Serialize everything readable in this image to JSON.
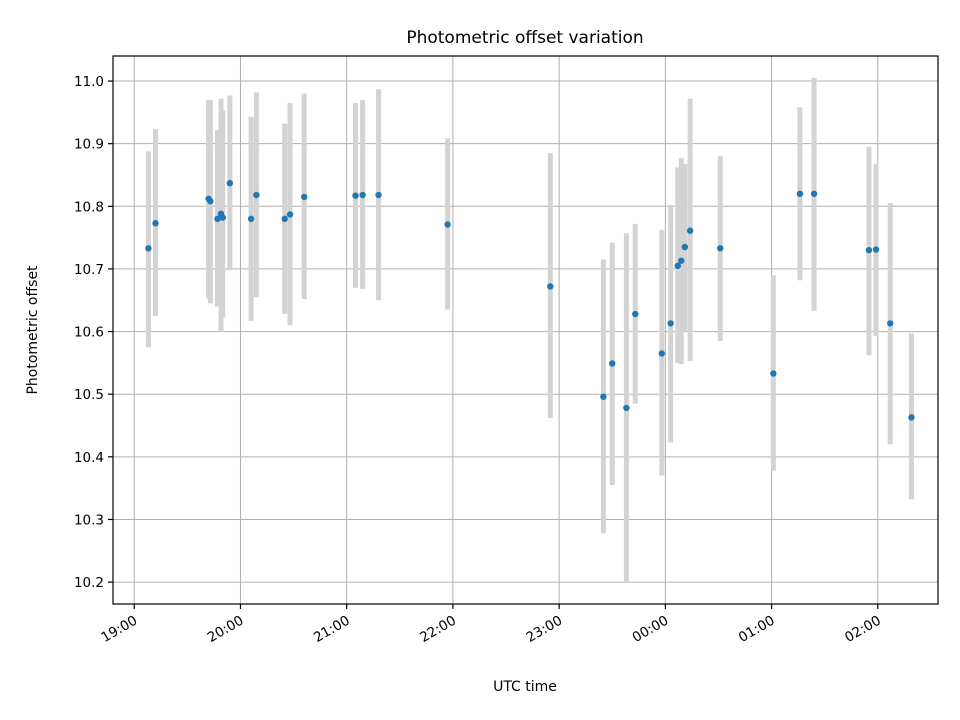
{
  "chart_data": {
    "type": "scatter",
    "title": "Photometric offset variation",
    "xlabel": "UTC time",
    "ylabel": "Photometric offset",
    "x_axis": {
      "kind": "time",
      "start": "19:00",
      "range_min": [
        -12,
        454
      ],
      "tick_labels": [
        "19:00",
        "20:00",
        "21:00",
        "22:00",
        "23:00",
        "00:00",
        "01:00",
        "02:00"
      ]
    },
    "ylim": [
      10.165,
      11.04
    ],
    "y_ticks": [
      10.2,
      10.3,
      10.4,
      10.5,
      10.6,
      10.7,
      10.8,
      10.9,
      11.0
    ],
    "y_tick_labels": [
      "10.2",
      "10.3",
      "10.4",
      "10.5",
      "10.6",
      "10.7",
      "10.8",
      "10.9",
      "11.0"
    ],
    "grid": true,
    "marker_color": "#1f77b4",
    "errorbar_color": "#d3d3d3",
    "points": [
      {
        "t": "19:08",
        "y": 10.733,
        "lo": 10.575,
        "hi": 10.888
      },
      {
        "t": "19:12",
        "y": 10.773,
        "lo": 10.625,
        "hi": 10.923
      },
      {
        "t": "19:42",
        "y": 10.812,
        "lo": 10.653,
        "hi": 10.97
      },
      {
        "t": "19:43",
        "y": 10.808,
        "lo": 10.645,
        "hi": 10.97
      },
      {
        "t": "19:47",
        "y": 10.78,
        "lo": 10.64,
        "hi": 10.922
      },
      {
        "t": "19:49",
        "y": 10.788,
        "lo": 10.6,
        "hi": 10.972
      },
      {
        "t": "19:50",
        "y": 10.782,
        "lo": 10.622,
        "hi": 10.953
      },
      {
        "t": "19:54",
        "y": 10.837,
        "lo": 10.698,
        "hi": 10.977
      },
      {
        "t": "20:06",
        "y": 10.78,
        "lo": 10.617,
        "hi": 10.943
      },
      {
        "t": "20:09",
        "y": 10.818,
        "lo": 10.655,
        "hi": 10.982
      },
      {
        "t": "20:25",
        "y": 10.78,
        "lo": 10.628,
        "hi": 10.932
      },
      {
        "t": "20:28",
        "y": 10.787,
        "lo": 10.61,
        "hi": 10.965
      },
      {
        "t": "20:36",
        "y": 10.815,
        "lo": 10.652,
        "hi": 10.98
      },
      {
        "t": "21:05",
        "y": 10.817,
        "lo": 10.67,
        "hi": 10.965
      },
      {
        "t": "21:09",
        "y": 10.818,
        "lo": 10.668,
        "hi": 10.97
      },
      {
        "t": "21:18",
        "y": 10.818,
        "lo": 10.65,
        "hi": 10.987
      },
      {
        "t": "21:57",
        "y": 10.771,
        "lo": 10.635,
        "hi": 10.908
      },
      {
        "t": "22:55",
        "y": 10.672,
        "lo": 10.462,
        "hi": 10.885
      },
      {
        "t": "23:25",
        "y": 10.496,
        "lo": 10.278,
        "hi": 10.715
      },
      {
        "t": "23:30",
        "y": 10.549,
        "lo": 10.355,
        "hi": 10.742
      },
      {
        "t": "23:38",
        "y": 10.478,
        "lo": 10.2,
        "hi": 10.757
      },
      {
        "t": "23:43",
        "y": 10.628,
        "lo": 10.485,
        "hi": 10.772
      },
      {
        "t": "23:58",
        "y": 10.565,
        "lo": 10.37,
        "hi": 10.762
      },
      {
        "t": "00:03",
        "y": 10.613,
        "lo": 10.423,
        "hi": 10.802
      },
      {
        "t": "00:07",
        "y": 10.705,
        "lo": 10.55,
        "hi": 10.862
      },
      {
        "t": "00:09",
        "y": 10.713,
        "lo": 10.548,
        "hi": 10.877
      },
      {
        "t": "00:11",
        "y": 10.735,
        "lo": 10.6,
        "hi": 10.868
      },
      {
        "t": "00:14",
        "y": 10.761,
        "lo": 10.553,
        "hi": 10.972
      },
      {
        "t": "00:31",
        "y": 10.733,
        "lo": 10.585,
        "hi": 10.88
      },
      {
        "t": "01:01",
        "y": 10.533,
        "lo": 10.378,
        "hi": 10.69
      },
      {
        "t": "01:16",
        "y": 10.82,
        "lo": 10.682,
        "hi": 10.958
      },
      {
        "t": "01:24",
        "y": 10.82,
        "lo": 10.633,
        "hi": 11.005
      },
      {
        "t": "01:55",
        "y": 10.73,
        "lo": 10.562,
        "hi": 10.895
      },
      {
        "t": "01:59",
        "y": 10.731,
        "lo": 10.593,
        "hi": 10.868
      },
      {
        "t": "02:07",
        "y": 10.613,
        "lo": 10.42,
        "hi": 10.805
      },
      {
        "t": "02:19",
        "y": 10.463,
        "lo": 10.332,
        "hi": 10.597
      }
    ]
  }
}
